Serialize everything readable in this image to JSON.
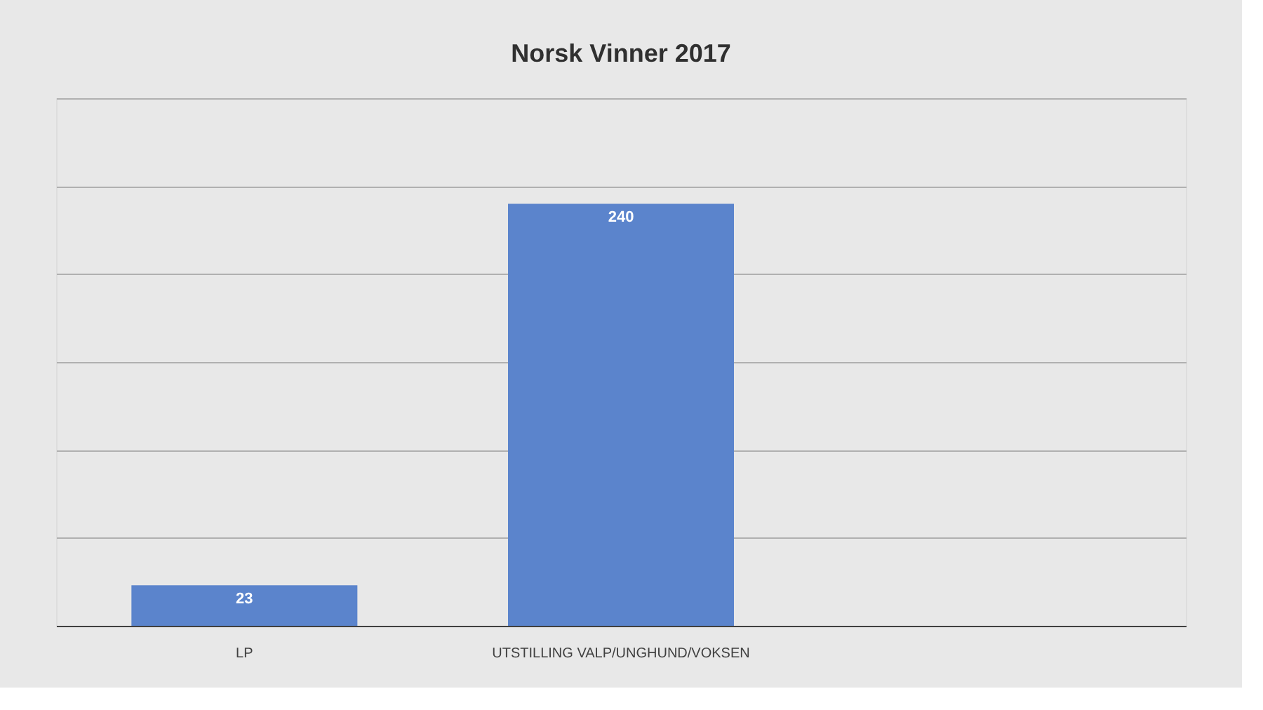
{
  "chart_data": {
    "type": "bar",
    "title": "Norsk Vinner 2017",
    "categories": [
      "LP",
      "UTSTILLING VALP/UNGHUND/VOKSEN",
      null
    ],
    "values": [
      23,
      240,
      null
    ],
    "color": "#5b84cc",
    "ylim": [
      0,
      300
    ],
    "yticks": [
      0,
      50,
      100,
      150,
      200,
      250,
      300
    ],
    "grid": "y",
    "tick_labels": "x",
    "data_labels": true
  }
}
